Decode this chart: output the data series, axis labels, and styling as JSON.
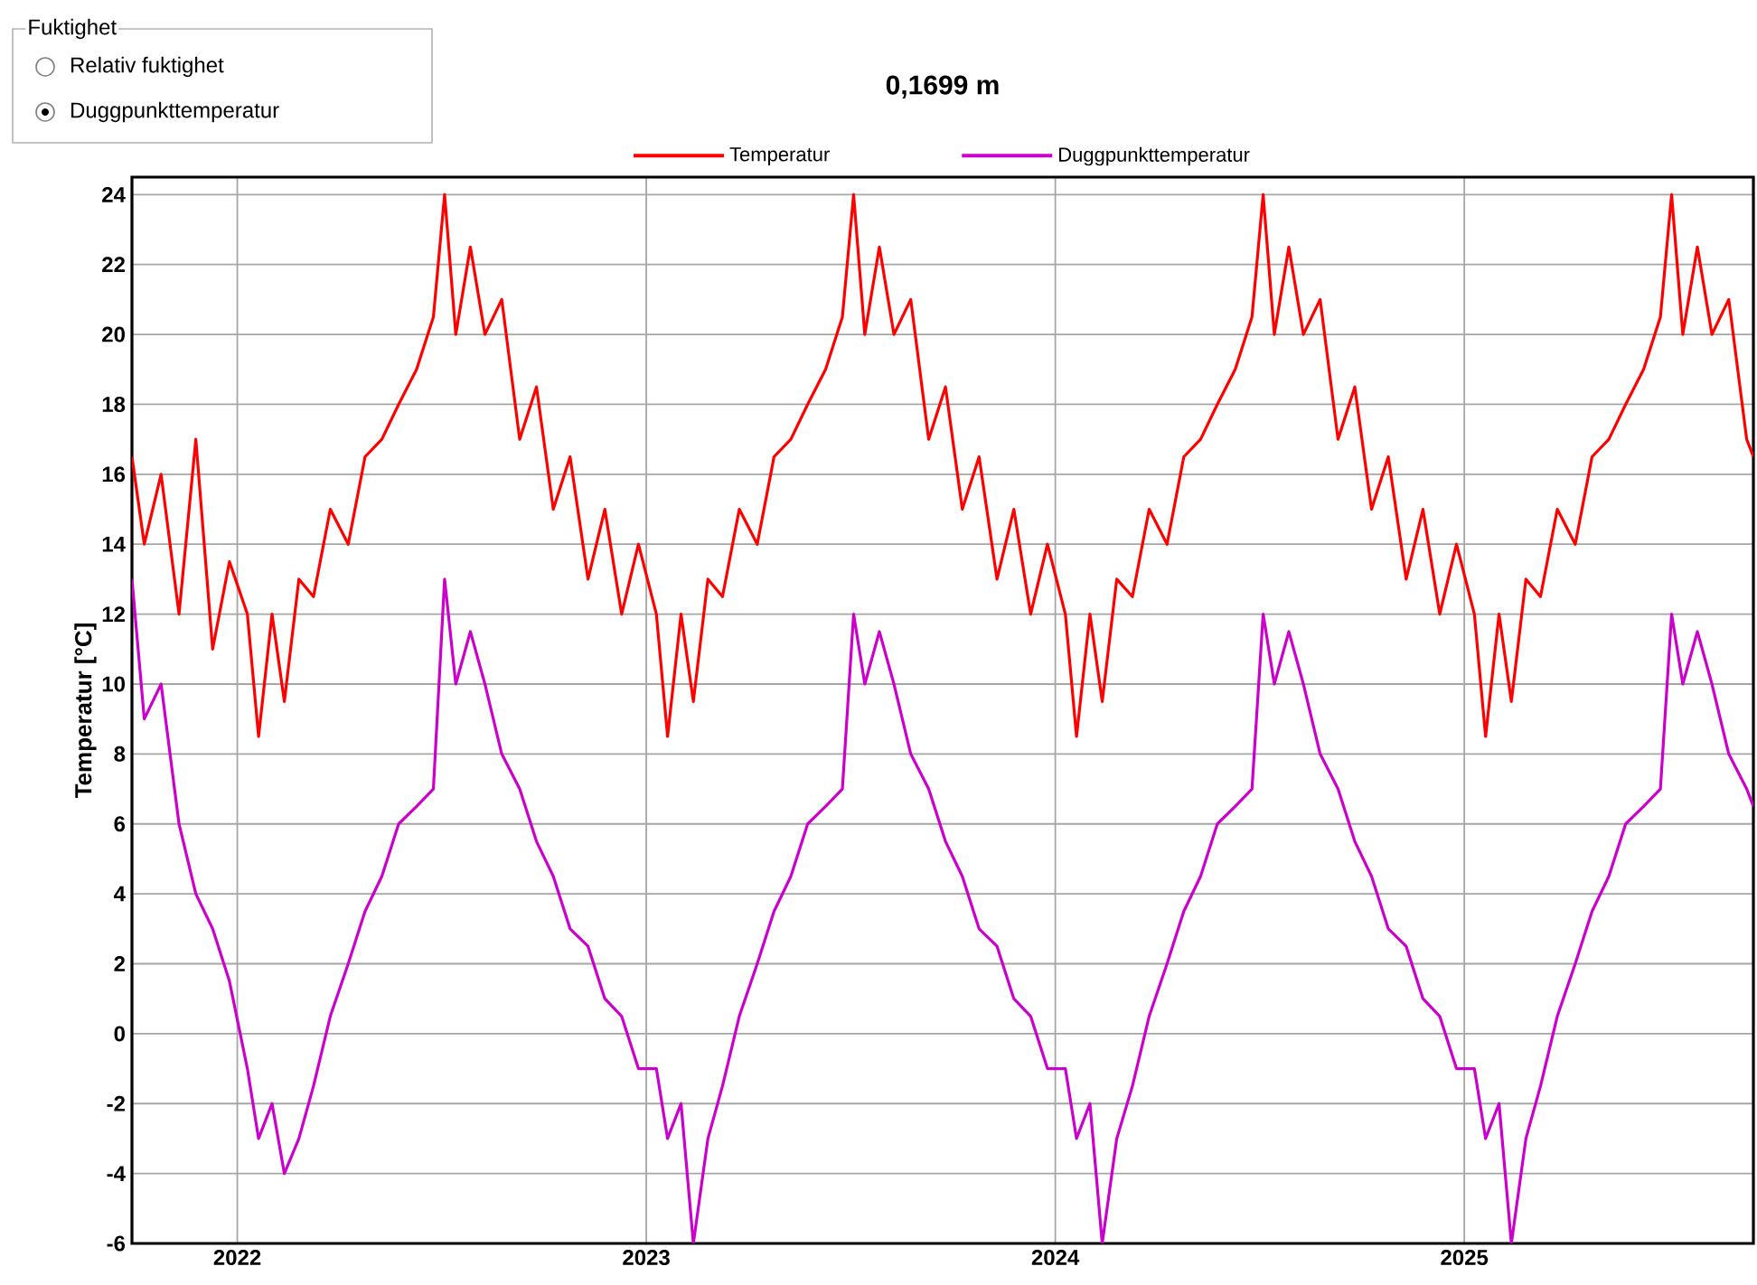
{
  "chart_data": {
    "type": "line",
    "title": "0,1699 m",
    "ylabel": "Temperatur [°C]",
    "annotations": [
      "Fuktighet",
      "Relativ fuktighet",
      "Duggpunkttemperatur"
    ],
    "x": [
      "2021-09-29",
      "2021-10-10",
      "2021-10-25",
      "2021-11-10",
      "2021-11-25",
      "2021-12-10",
      "2021-12-25",
      "2022-01-10",
      "2022-01-20",
      "2022-02-01",
      "2022-02-12",
      "2022-02-25",
      "2022-03-10",
      "2022-03-25",
      "2022-04-10",
      "2022-04-25",
      "2022-05-10",
      "2022-05-25",
      "2022-06-10",
      "2022-06-25",
      "2022-07-05",
      "2022-07-15",
      "2022-07-28",
      "2022-08-10",
      "2022-08-25",
      "2022-09-10",
      "2022-09-25",
      "2022-10-10",
      "2022-10-25",
      "2022-11-10",
      "2022-11-25",
      "2022-12-10",
      "2022-12-25",
      "2023-01-10",
      "2023-01-20",
      "2023-02-01",
      "2023-02-12",
      "2023-02-25",
      "2023-03-10",
      "2023-03-25",
      "2023-04-10",
      "2023-04-25",
      "2023-05-10",
      "2023-05-25",
      "2023-06-10",
      "2023-06-25",
      "2023-07-05",
      "2023-07-15",
      "2023-07-28",
      "2023-08-10",
      "2023-08-25",
      "2023-09-10",
      "2023-09-25",
      "2023-10-10",
      "2023-10-25",
      "2023-11-10",
      "2023-11-25",
      "2023-12-10",
      "2023-12-25",
      "2024-01-10",
      "2024-01-20",
      "2024-02-01",
      "2024-02-12",
      "2024-02-25",
      "2024-03-10",
      "2024-03-25",
      "2024-04-10",
      "2024-04-25",
      "2024-05-10",
      "2024-05-25",
      "2024-06-10",
      "2024-06-25",
      "2024-07-05",
      "2024-07-15",
      "2024-07-28",
      "2024-08-10",
      "2024-08-25",
      "2024-09-10",
      "2024-09-25",
      "2024-10-10",
      "2024-10-25",
      "2024-11-10",
      "2024-11-25",
      "2024-12-10",
      "2024-12-25",
      "2025-01-10",
      "2025-01-20",
      "2025-02-01",
      "2025-02-12",
      "2025-02-25",
      "2025-03-10",
      "2025-03-25",
      "2025-04-10",
      "2025-04-25",
      "2025-05-10",
      "2025-05-25",
      "2025-06-10",
      "2025-06-25",
      "2025-07-05",
      "2025-07-15",
      "2025-07-28",
      "2025-08-10",
      "2025-08-25",
      "2025-09-10",
      "2025-09-16"
    ],
    "series": [
      {
        "name": "Temperatur",
        "color": "#ff0000",
        "values": [
          16.5,
          14,
          16,
          12,
          17,
          11,
          13.5,
          12,
          8.5,
          12,
          9.5,
          13,
          12.5,
          15,
          14,
          16.5,
          17,
          18,
          19,
          20.5,
          24,
          20,
          22.5,
          20,
          21,
          17,
          18.5,
          15,
          16.5,
          13,
          15,
          12,
          14,
          12,
          8.5,
          12,
          9.5,
          13,
          12.5,
          15,
          14,
          16.5,
          17,
          18,
          19,
          20.5,
          24,
          20,
          22.5,
          20,
          21,
          17,
          18.5,
          15,
          16.5,
          13,
          15,
          12,
          14,
          12,
          8.5,
          12,
          9.5,
          13,
          12.5,
          15,
          14,
          16.5,
          17,
          18,
          19,
          20.5,
          24,
          20,
          22.5,
          20,
          21,
          17,
          18.5,
          15,
          16.5,
          13,
          15,
          12,
          14,
          12,
          8.5,
          12,
          9.5,
          13,
          12.5,
          15,
          14,
          16.5,
          17,
          18,
          19,
          20.5,
          24,
          20,
          22.5,
          20,
          21,
          17,
          16.5
        ]
      },
      {
        "name": "Duggpunkttemperatur",
        "color": "#cc00cc",
        "values": [
          13,
          9,
          10,
          6,
          4,
          3,
          1.5,
          -1,
          -3,
          -2,
          -4,
          -3,
          -1.5,
          0.5,
          2,
          3.5,
          4.5,
          6,
          6.5,
          7,
          13,
          10,
          11.5,
          10,
          8,
          7,
          5.5,
          4.5,
          3,
          2.5,
          1,
          0.5,
          -1,
          -1,
          -3,
          -2,
          -6,
          -3,
          -1.5,
          0.5,
          2,
          3.5,
          4.5,
          6,
          6.5,
          7,
          12,
          10,
          11.5,
          10,
          8,
          7,
          5.5,
          4.5,
          3,
          2.5,
          1,
          0.5,
          -1,
          -1,
          -3,
          -2,
          -6,
          -3,
          -1.5,
          0.5,
          2,
          3.5,
          4.5,
          6,
          6.5,
          7,
          12,
          10,
          11.5,
          10,
          8,
          7,
          5.5,
          4.5,
          3,
          2.5,
          1,
          0.5,
          -1,
          -1,
          -3,
          -2,
          -6,
          -3,
          -1.5,
          0.5,
          2,
          3.5,
          4.5,
          6,
          6.5,
          7,
          12,
          10,
          11.5,
          10,
          8,
          7,
          6.5
        ]
      }
    ],
    "xlim": [
      "2021-09-29",
      "2025-09-16"
    ],
    "xticks": [
      {
        "value": "2022-01-01",
        "label": "2022"
      },
      {
        "value": "2023-01-01",
        "label": "2023"
      },
      {
        "value": "2024-01-01",
        "label": "2024"
      },
      {
        "value": "2025-01-01",
        "label": "2025"
      }
    ],
    "ylim": [
      -6,
      24.5
    ],
    "yticks": [
      -6,
      -4,
      -2,
      0,
      2,
      4,
      6,
      8,
      10,
      12,
      14,
      16,
      18,
      20,
      22,
      24
    ],
    "grid": true,
    "legend": "top",
    "line_style": "solid",
    "marker": "none"
  }
}
